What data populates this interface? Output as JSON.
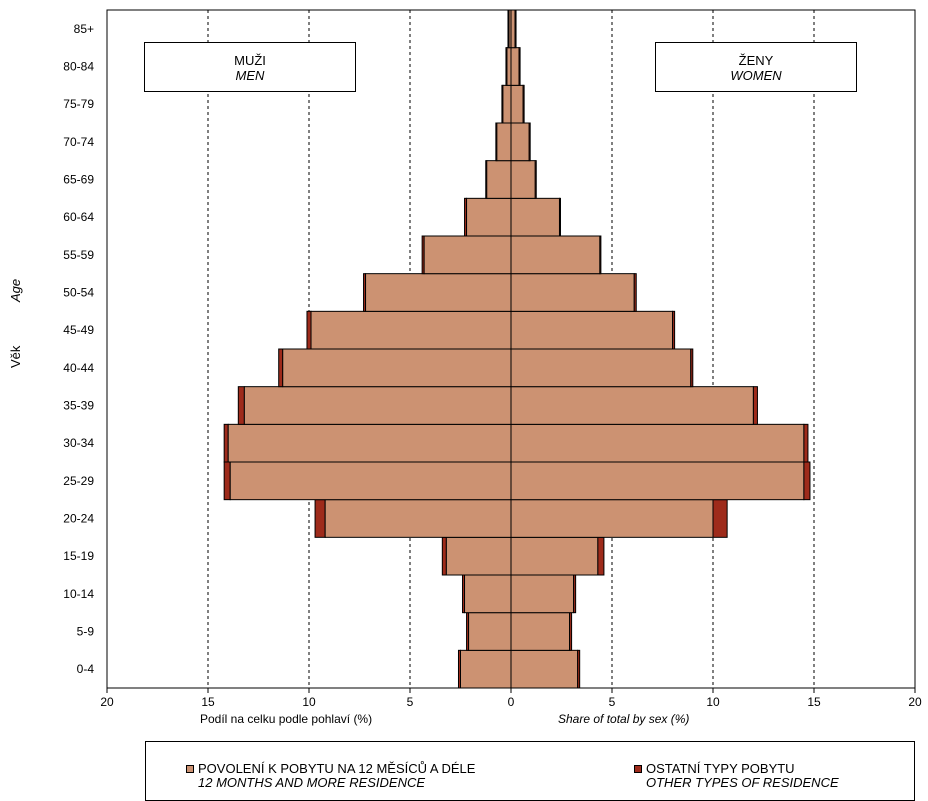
{
  "chart_data": {
    "type": "bar",
    "orientation": "horizontal population pyramid",
    "categories": [
      "0-4",
      "5-9",
      "10-14",
      "15-19",
      "20-24",
      "25-29",
      "30-34",
      "35-39",
      "40-44",
      "45-49",
      "50-54",
      "55-59",
      "60-64",
      "65-69",
      "70-74",
      "75-79",
      "80-84",
      "85+"
    ],
    "men": {
      "permit_12m": [
        2.5,
        2.1,
        2.3,
        3.2,
        9.2,
        13.9,
        14.0,
        13.2,
        11.3,
        9.9,
        7.2,
        4.3,
        2.2,
        1.2,
        0.7,
        0.4,
        0.2,
        0.1
      ],
      "other": [
        0.1,
        0.1,
        0.1,
        0.2,
        0.5,
        0.3,
        0.2,
        0.3,
        0.2,
        0.2,
        0.1,
        0.1,
        0.1,
        0.05,
        0.05,
        0.05,
        0.05,
        0.05
      ]
    },
    "women": {
      "permit_12m": [
        3.3,
        2.9,
        3.1,
        4.3,
        10.0,
        14.5,
        14.5,
        12.0,
        8.9,
        8.0,
        6.1,
        4.4,
        2.4,
        1.2,
        0.9,
        0.6,
        0.4,
        0.2
      ],
      "other": [
        0.1,
        0.1,
        0.1,
        0.3,
        0.7,
        0.3,
        0.2,
        0.2,
        0.1,
        0.1,
        0.1,
        0.05,
        0.05,
        0.05,
        0.05,
        0.05,
        0.05,
        0.05
      ]
    },
    "x_ticks": [
      "20",
      "15",
      "10",
      "5",
      "0",
      "5",
      "10",
      "15",
      "20"
    ],
    "xlim": [
      -20,
      20
    ],
    "grid": "vertical dashed at 5, 10, 15",
    "xlabel_cs": "Podíl na celku podle pohlaví (%)",
    "xlabel_en": "Share of total by sex (%)",
    "ylabel_cs": "Věk",
    "ylabel_en": "Age",
    "colors": {
      "permit": "#cc9272",
      "other": "#9e2b1b",
      "outline": "#000000"
    }
  },
  "boxes": {
    "men_cs": "MUŽI",
    "men_en": "MEN",
    "women_cs": "ŽENY",
    "women_en": "WOMEN"
  },
  "legend": {
    "a_cs": "POVOLENÍ K POBYTU NA 12 MĚSÍCŮ A DÉLE",
    "a_en": "12 MONTHS AND MORE RESIDENCE",
    "b_cs": "OSTATNÍ TYPY POBYTU",
    "b_en": "OTHER TYPES OF RESIDENCE"
  }
}
